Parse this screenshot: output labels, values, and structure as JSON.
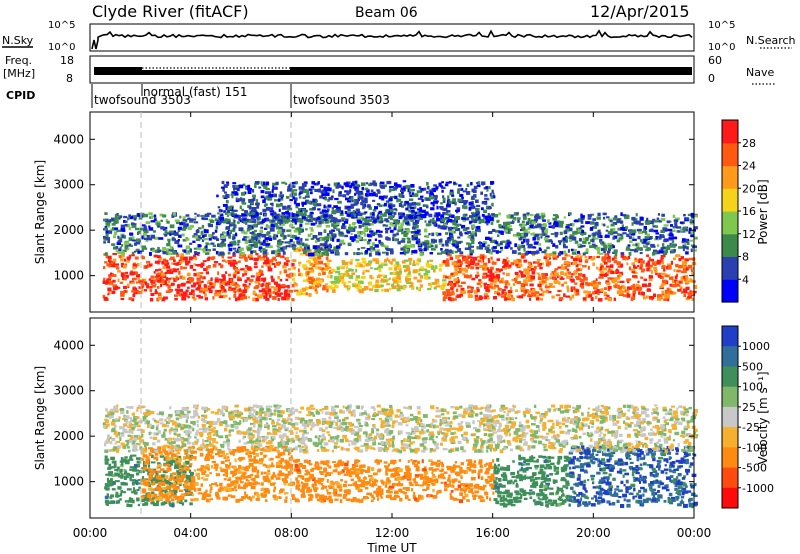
{
  "header": {
    "station": "Clyde River (fitACF)",
    "beam": "Beam 06",
    "date": "12/Apr/2015"
  },
  "noise_panel": {
    "left_label": "N.Sky",
    "right_label": "N.Search",
    "left_ticks": [
      "10^5",
      "10^0"
    ],
    "right_ticks": [
      "10^5",
      "10^0"
    ]
  },
  "freq_panel": {
    "left_label_1": "Freq.",
    "left_label_2": "[MHz]",
    "right_label": "Nave",
    "left_ticks": [
      "18",
      "8"
    ],
    "right_ticks": [
      "60",
      "0"
    ]
  },
  "cpid": {
    "label": "CPID",
    "segments": [
      {
        "name": "twofsound 3503",
        "start_hour": 0.0
      },
      {
        "name": "normal (fast) 151",
        "start_hour": 2.0
      },
      {
        "name": "twofsound 3503",
        "start_hour": 8.0
      }
    ]
  },
  "chart_data": [
    {
      "type": "heatmap",
      "name": "power",
      "ylabel": "Slant Range [km]",
      "xlabel": "Time UT",
      "xlim": [
        0,
        24
      ],
      "ylim": [
        200,
        4600
      ],
      "x_ticks": [
        "00:00",
        "04:00",
        "08:00",
        "12:00",
        "16:00",
        "20:00",
        "00:00"
      ],
      "y_ticks": [
        1000,
        2000,
        3000,
        4000
      ],
      "colorbar": {
        "label": "Power [dB]",
        "ticks": [
          "4",
          "8",
          "12",
          "16",
          "20",
          "24",
          "28"
        ],
        "colors": [
          "#0000ff",
          "#2a3fb0",
          "#3b8a4a",
          "#7ec850",
          "#f5d31a",
          "#ff9a1a",
          "#ff5a10",
          "#ff1a1a"
        ]
      },
      "bands": [
        {
          "x": [
            0.5,
            8.0
          ],
          "y": [
            500,
            1500
          ],
          "value": 28
        },
        {
          "x": [
            8.0,
            9.5
          ],
          "y": [
            600,
            1700
          ],
          "value": 22
        },
        {
          "x": [
            9.5,
            14.0
          ],
          "y": [
            700,
            1400
          ],
          "value": 18
        },
        {
          "x": [
            14.0,
            24.0
          ],
          "y": [
            500,
            1500
          ],
          "value": 26
        },
        {
          "x": [
            0.5,
            24.0
          ],
          "y": [
            1500,
            2400
          ],
          "value": 8
        },
        {
          "x": [
            5.0,
            16.0
          ],
          "y": [
            2200,
            3100
          ],
          "value": 6
        }
      ]
    },
    {
      "type": "heatmap",
      "name": "velocity",
      "ylabel": "Slant Range [km]",
      "xlabel": "Time UT",
      "xlim": [
        0,
        24
      ],
      "ylim": [
        200,
        4600
      ],
      "x_ticks": [
        "00:00",
        "04:00",
        "08:00",
        "12:00",
        "16:00",
        "20:00",
        "00:00"
      ],
      "y_ticks": [
        1000,
        2000,
        3000,
        4000
      ],
      "colorbar": {
        "label": "Velocity [m s⁻¹]",
        "ticks": [
          "1000",
          "500",
          "100",
          "25",
          "-25",
          "-100",
          "-500",
          "-1000"
        ],
        "colors": [
          "#1f3fc8",
          "#2f6f9a",
          "#3f8f5a",
          "#7fb86a",
          "#c8c8c8",
          "#f5b030",
          "#ff8a10",
          "#ff4a10",
          "#ff0a0a"
        ]
      },
      "bands": [
        {
          "x": [
            0.5,
            4.0
          ],
          "y": [
            500,
            1600
          ],
          "value": 300
        },
        {
          "x": [
            2.0,
            8.0
          ],
          "y": [
            600,
            1800
          ],
          "value": -200
        },
        {
          "x": [
            8.0,
            16.0
          ],
          "y": [
            600,
            1500
          ],
          "value": -300
        },
        {
          "x": [
            16.0,
            19.0
          ],
          "y": [
            500,
            1600
          ],
          "value": 300
        },
        {
          "x": [
            19.0,
            24.0
          ],
          "y": [
            500,
            1800
          ],
          "value": 900
        },
        {
          "x": [
            0.5,
            24.0
          ],
          "y": [
            1700,
            2700
          ],
          "value": 0
        }
      ]
    }
  ]
}
